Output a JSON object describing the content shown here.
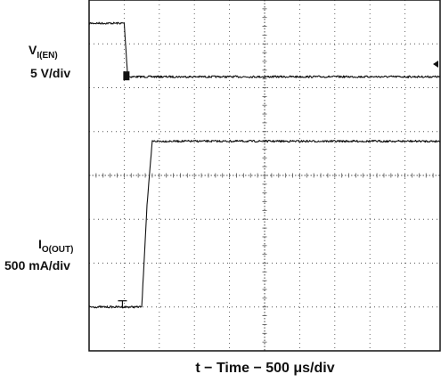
{
  "chart_data": {
    "type": "line",
    "title": "",
    "xlabel": "t − Time − 500  μs/div",
    "x_unit": "div",
    "ylabel": "",
    "xlim": [
      0,
      10
    ],
    "ylim": [
      0,
      8
    ],
    "grid": true,
    "channels": [
      {
        "label_prefix": "V",
        "label_sub": "I(EN)",
        "scale": "5 V/div"
      },
      {
        "label_prefix": "I",
        "label_sub": "O(OUT)",
        "scale": "500 mA/div"
      }
    ],
    "series": [
      {
        "x": [
          0.0,
          1.0,
          1.05,
          1.1,
          10.0
        ],
        "y": [
          7.47,
          7.47,
          6.86,
          6.25,
          6.25
        ]
      },
      {
        "x": [
          0.0,
          0.95,
          1.5,
          1.65,
          1.8,
          10.0
        ],
        "y": [
          1.0,
          1.0,
          1.0,
          3.32,
          4.78,
          4.78
        ]
      }
    ],
    "colors": {
      "trace": "#111111",
      "grid": "#555555",
      "frame": "#111111"
    }
  }
}
